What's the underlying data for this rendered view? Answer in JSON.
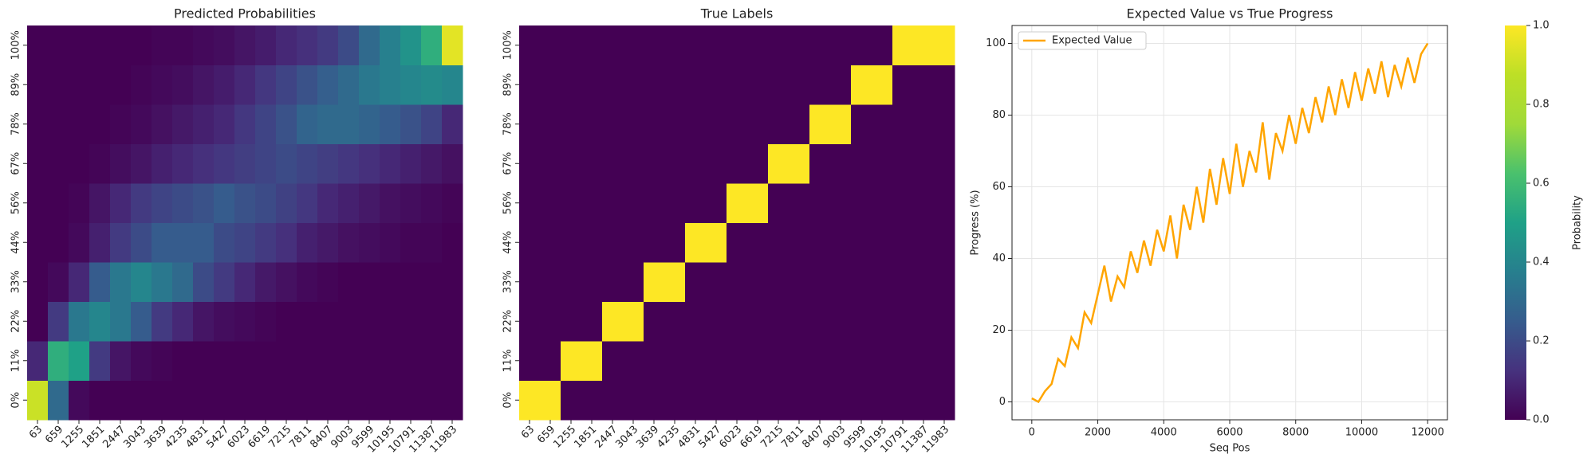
{
  "chart_data": [
    {
      "type": "heatmap",
      "title": "Predicted Probabilities",
      "categories": [
        "63",
        "659",
        "1255",
        "1851",
        "2447",
        "3043",
        "3639",
        "4235",
        "4831",
        "5427",
        "6023",
        "6619",
        "7215",
        "7811",
        "8407",
        "9003",
        "9599",
        "10195",
        "10791",
        "11387",
        "11983"
      ],
      "rows": [
        "0%",
        "11%",
        "22%",
        "33%",
        "44%",
        "56%",
        "67%",
        "78%",
        "89%",
        "100%"
      ],
      "values": [
        [
          0.9,
          0.3,
          0.02,
          0,
          0,
          0,
          0,
          0,
          0,
          0,
          0,
          0,
          0,
          0,
          0,
          0,
          0,
          0,
          0,
          0,
          0
        ],
        [
          0.1,
          0.55,
          0.5,
          0.15,
          0.05,
          0.02,
          0.01,
          0,
          0,
          0,
          0,
          0,
          0,
          0,
          0,
          0,
          0,
          0,
          0,
          0,
          0
        ],
        [
          0,
          0.15,
          0.35,
          0.4,
          0.35,
          0.25,
          0.15,
          0.1,
          0.05,
          0.03,
          0.02,
          0.01,
          0,
          0,
          0,
          0,
          0,
          0,
          0,
          0,
          0
        ],
        [
          0,
          0.02,
          0.1,
          0.25,
          0.35,
          0.4,
          0.35,
          0.3,
          0.2,
          0.15,
          0.1,
          0.06,
          0.04,
          0.02,
          0.01,
          0,
          0,
          0,
          0,
          0,
          0
        ],
        [
          0,
          0,
          0.02,
          0.08,
          0.15,
          0.2,
          0.25,
          0.25,
          0.25,
          0.2,
          0.18,
          0.15,
          0.12,
          0.08,
          0.06,
          0.04,
          0.03,
          0.02,
          0.01,
          0.01,
          0
        ],
        [
          0,
          0,
          0.01,
          0.05,
          0.1,
          0.15,
          0.18,
          0.2,
          0.22,
          0.25,
          0.22,
          0.2,
          0.17,
          0.14,
          0.1,
          0.08,
          0.06,
          0.04,
          0.03,
          0.02,
          0.01
        ],
        [
          0,
          0,
          0,
          0.01,
          0.03,
          0.05,
          0.08,
          0.1,
          0.12,
          0.14,
          0.16,
          0.18,
          0.2,
          0.18,
          0.16,
          0.14,
          0.12,
          0.1,
          0.08,
          0.06,
          0.04
        ],
        [
          0,
          0,
          0,
          0,
          0.01,
          0.02,
          0.04,
          0.06,
          0.08,
          0.1,
          0.14,
          0.18,
          0.22,
          0.28,
          0.3,
          0.3,
          0.28,
          0.25,
          0.22,
          0.18,
          0.1
        ],
        [
          0,
          0,
          0,
          0,
          0,
          0.01,
          0.02,
          0.03,
          0.05,
          0.07,
          0.1,
          0.14,
          0.18,
          0.22,
          0.26,
          0.3,
          0.35,
          0.38,
          0.4,
          0.42,
          0.4
        ],
        [
          0,
          0,
          0,
          0,
          0,
          0,
          0.01,
          0.01,
          0.02,
          0.03,
          0.05,
          0.07,
          0.1,
          0.12,
          0.15,
          0.2,
          0.3,
          0.38,
          0.45,
          0.55,
          0.95
        ]
      ]
    },
    {
      "type": "heatmap",
      "title": "True Labels",
      "categories": [
        "63",
        "659",
        "1255",
        "1851",
        "2447",
        "3043",
        "3639",
        "4235",
        "4831",
        "5427",
        "6023",
        "6619",
        "7215",
        "7811",
        "8407",
        "9003",
        "9599",
        "10195",
        "10791",
        "11387",
        "11983"
      ],
      "rows": [
        "0%",
        "11%",
        "22%",
        "33%",
        "44%",
        "56%",
        "67%",
        "78%",
        "89%",
        "100%"
      ],
      "values": [
        [
          1,
          1,
          0,
          0,
          0,
          0,
          0,
          0,
          0,
          0,
          0,
          0,
          0,
          0,
          0,
          0,
          0,
          0,
          0,
          0,
          0
        ],
        [
          0,
          0,
          1,
          1,
          0,
          0,
          0,
          0,
          0,
          0,
          0,
          0,
          0,
          0,
          0,
          0,
          0,
          0,
          0,
          0,
          0
        ],
        [
          0,
          0,
          0,
          0,
          1,
          1,
          0,
          0,
          0,
          0,
          0,
          0,
          0,
          0,
          0,
          0,
          0,
          0,
          0,
          0,
          0
        ],
        [
          0,
          0,
          0,
          0,
          0,
          0,
          1,
          1,
          0,
          0,
          0,
          0,
          0,
          0,
          0,
          0,
          0,
          0,
          0,
          0,
          0
        ],
        [
          0,
          0,
          0,
          0,
          0,
          0,
          0,
          0,
          1,
          1,
          0,
          0,
          0,
          0,
          0,
          0,
          0,
          0,
          0,
          0,
          0
        ],
        [
          0,
          0,
          0,
          0,
          0,
          0,
          0,
          0,
          0,
          0,
          1,
          1,
          0,
          0,
          0,
          0,
          0,
          0,
          0,
          0,
          0
        ],
        [
          0,
          0,
          0,
          0,
          0,
          0,
          0,
          0,
          0,
          0,
          0,
          0,
          1,
          1,
          0,
          0,
          0,
          0,
          0,
          0,
          0
        ],
        [
          0,
          0,
          0,
          0,
          0,
          0,
          0,
          0,
          0,
          0,
          0,
          0,
          0,
          0,
          1,
          1,
          0,
          0,
          0,
          0,
          0
        ],
        [
          0,
          0,
          0,
          0,
          0,
          0,
          0,
          0,
          0,
          0,
          0,
          0,
          0,
          0,
          0,
          0,
          1,
          1,
          0,
          0,
          0
        ],
        [
          0,
          0,
          0,
          0,
          0,
          0,
          0,
          0,
          0,
          0,
          0,
          0,
          0,
          0,
          0,
          0,
          0,
          0,
          1,
          1,
          1
        ]
      ]
    },
    {
      "type": "line",
      "title": "Expected Value vs True Progress",
      "x_label": "Seq Pos",
      "y_label": "Progress (%)",
      "x": [
        0,
        200,
        400,
        600,
        800,
        1000,
        1200,
        1400,
        1600,
        1800,
        2000,
        2200,
        2400,
        2600,
        2800,
        3000,
        3200,
        3400,
        3600,
        3800,
        4000,
        4200,
        4400,
        4600,
        4800,
        5000,
        5200,
        5400,
        5600,
        5800,
        6000,
        6200,
        6400,
        6600,
        6800,
        7000,
        7200,
        7400,
        7600,
        7800,
        8000,
        8200,
        8400,
        8600,
        8800,
        9000,
        9200,
        9400,
        9600,
        9800,
        10000,
        10200,
        10400,
        10600,
        10800,
        11000,
        11200,
        11400,
        11600,
        11800,
        12000
      ],
      "series": [
        {
          "name": "Expected Value",
          "color": "#ffa500",
          "values": [
            1,
            0,
            3,
            5,
            12,
            10,
            18,
            15,
            25,
            22,
            30,
            38,
            28,
            35,
            32,
            42,
            36,
            45,
            38,
            48,
            42,
            52,
            40,
            55,
            48,
            60,
            50,
            65,
            55,
            68,
            58,
            72,
            60,
            70,
            64,
            78,
            62,
            75,
            70,
            80,
            72,
            82,
            75,
            85,
            78,
            88,
            80,
            90,
            82,
            92,
            84,
            93,
            86,
            95,
            85,
            94,
            88,
            96,
            89,
            97,
            100
          ]
        }
      ],
      "xlim": [
        -600,
        12600
      ],
      "xticks": [
        0,
        2000,
        4000,
        6000,
        8000,
        10000,
        12000
      ],
      "ylim": [
        -5,
        105
      ],
      "yticks": [
        0,
        20,
        40,
        60,
        80,
        100
      ],
      "grid": true,
      "legend": "upper left"
    },
    {
      "type": "colorbar",
      "label": "Probability",
      "ylim": [
        0,
        1
      ],
      "yticks": [
        {
          "value": 0,
          "label": "0.0"
        },
        {
          "value": 0.2,
          "label": "0.2"
        },
        {
          "value": 0.4,
          "label": "0.4"
        },
        {
          "value": 0.6,
          "label": "0.6"
        },
        {
          "value": 0.8,
          "label": "0.8"
        },
        {
          "value": 1,
          "label": "1.0"
        }
      ]
    }
  ]
}
